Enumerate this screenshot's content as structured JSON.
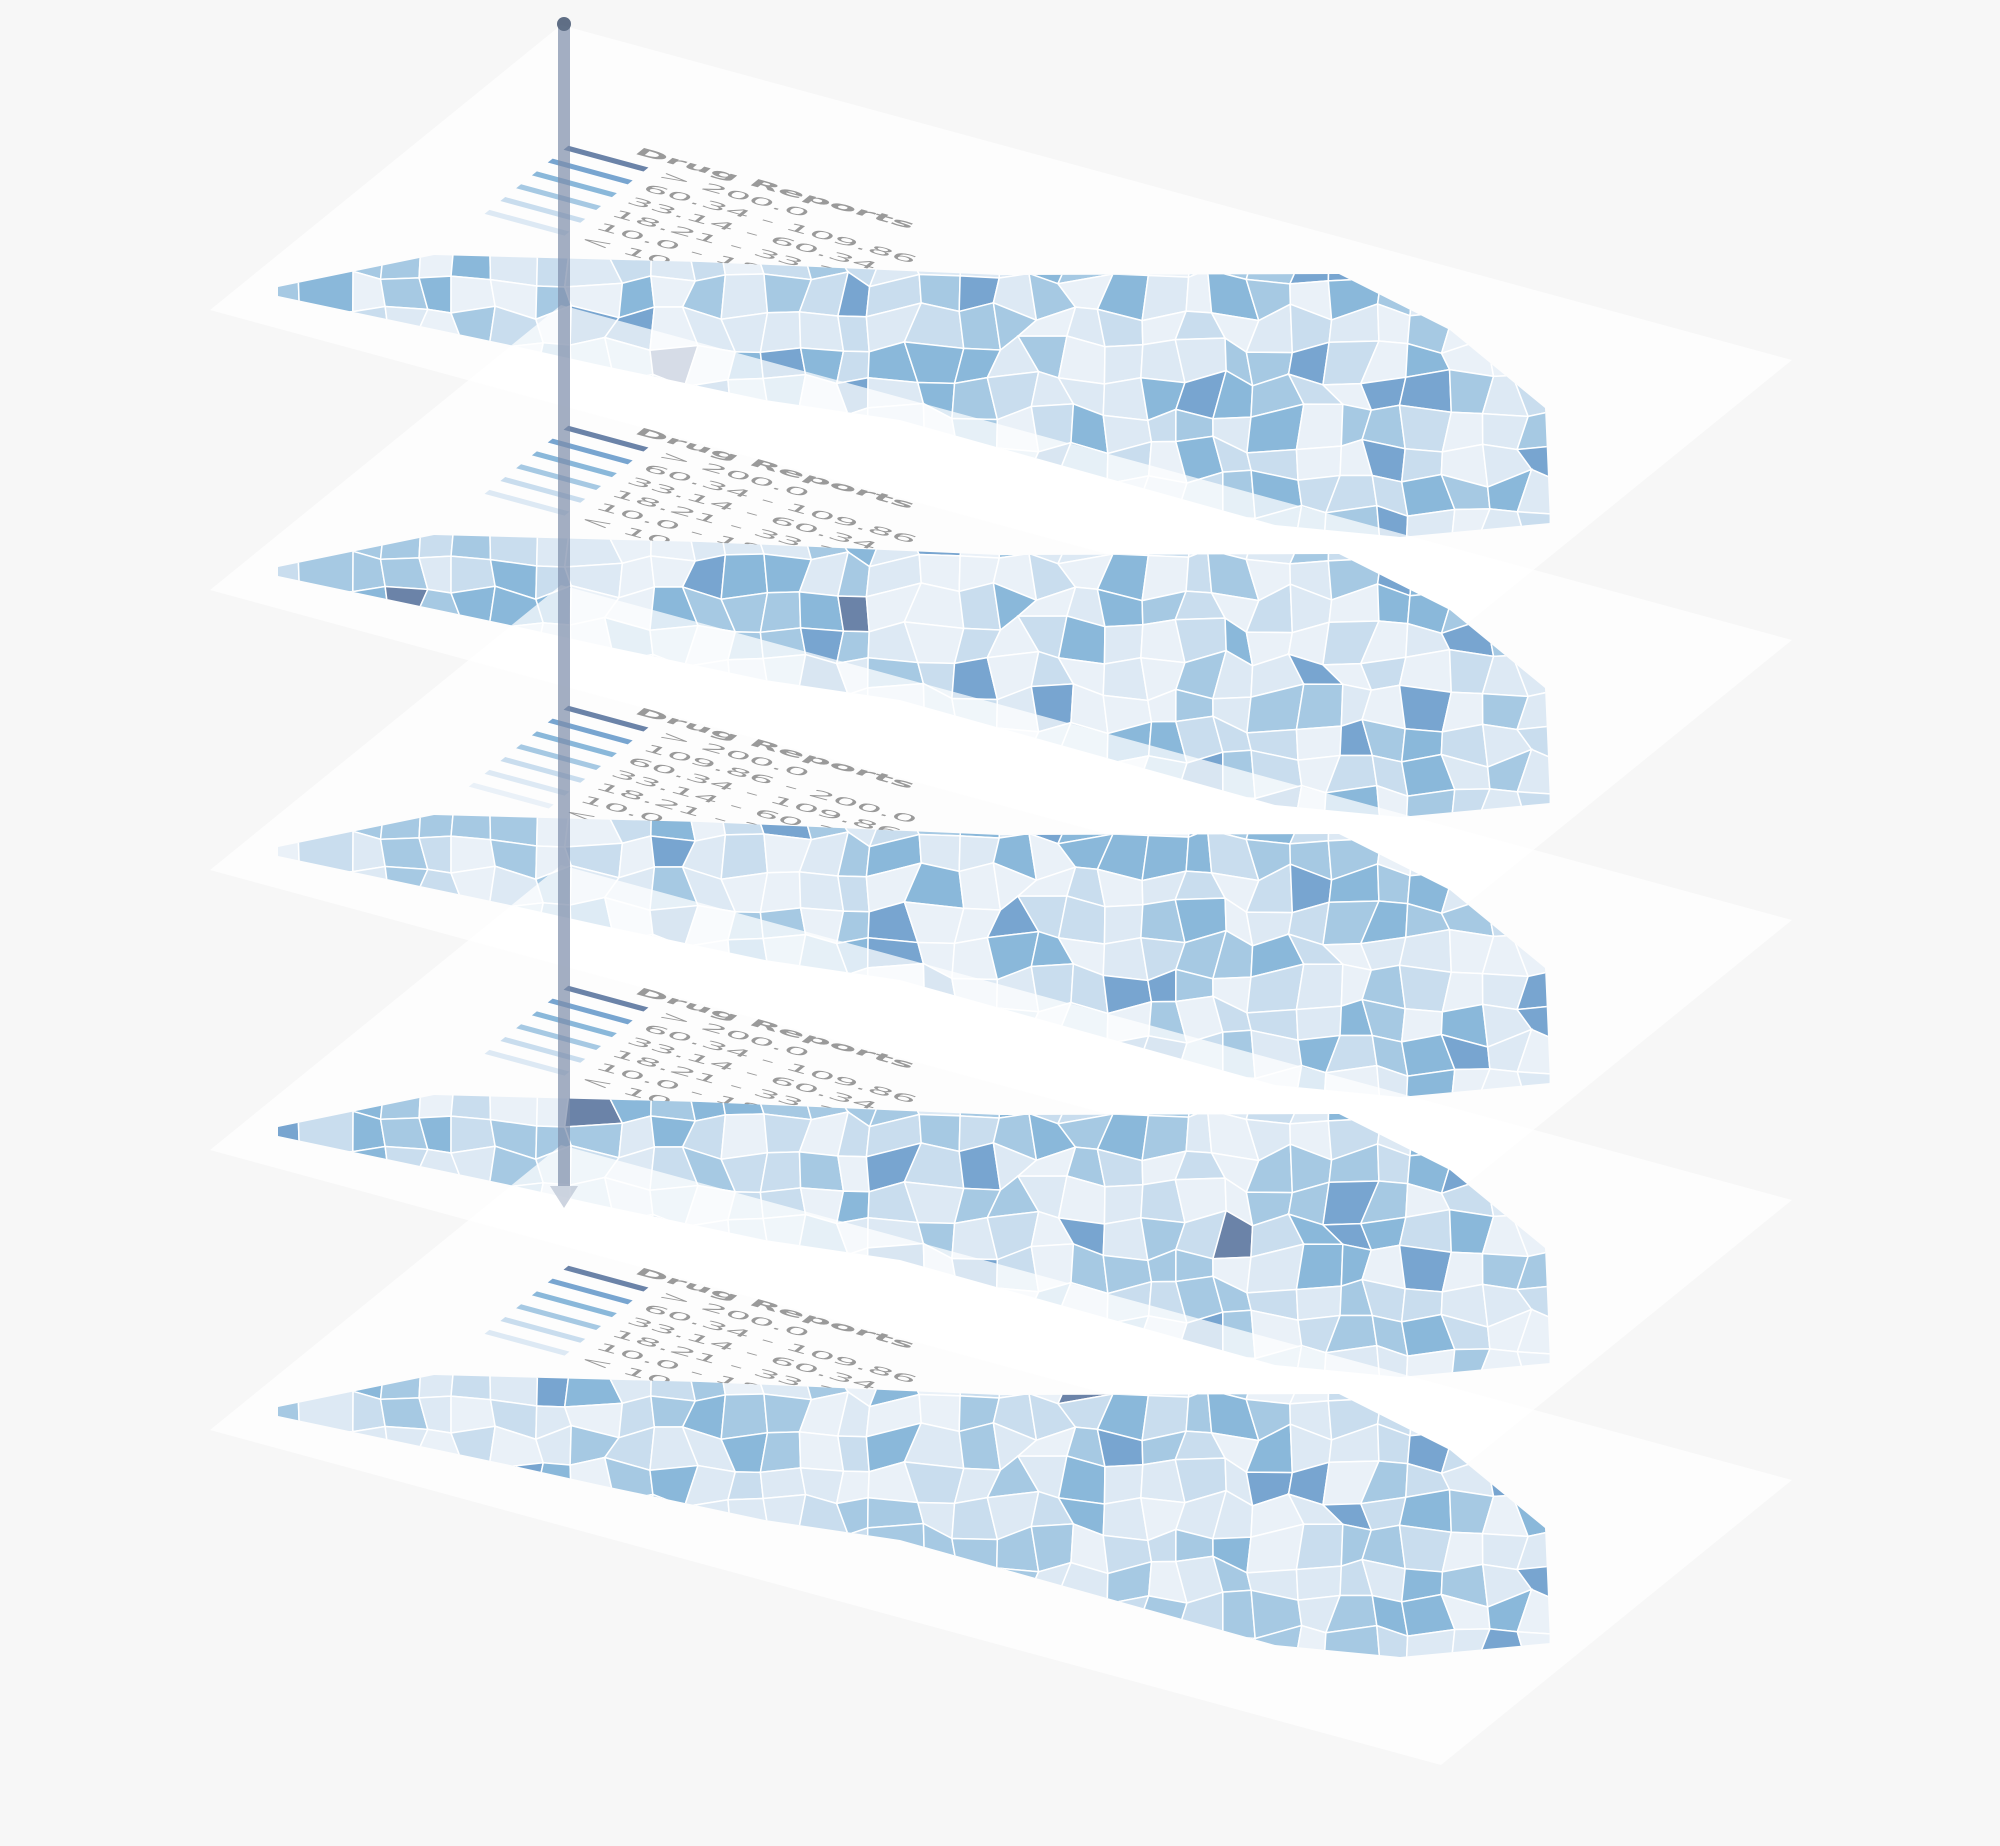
{
  "layers": [
    {
      "legend": {
        "title": "Drug Reports",
        "items": [
          "> 200.0",
          "60.34 - 109.86",
          "33.14 - 60.34",
          "18.21 - 33.14",
          "10.0 - 18.21",
          "< 10.0"
        ]
      }
    },
    {
      "legend": {
        "title": "Drug Reports",
        "items": [
          "> 200.0",
          "60.34 - 109.86",
          "33.14 - 60.34",
          "18.21 - 33.14",
          "10.0 - 18.21",
          "< 10.0"
        ]
      }
    },
    {
      "legend": {
        "title": "Drug Reports",
        "items": [
          "> 200.0",
          "109.86 - 200.0",
          "60.34 - 109.86",
          "33.14 - 60.34",
          "18.21 - 33.14",
          "10.0 - 18.21",
          "< 10.0"
        ]
      }
    },
    {
      "legend": {
        "title": "Drug Reports",
        "items": [
          "> 200.0",
          "60.34 - 109.86",
          "33.14 - 60.34",
          "18.21 - 33.14",
          "10.0 - 18.21",
          "< 10.0"
        ]
      }
    },
    {
      "legend": {
        "title": "Drug Reports",
        "items": [
          "> 200.0",
          "60.34 - 109.86",
          "33.14 - 60.34",
          "18.21 - 33.14",
          "10.0 - 18.21",
          "< 10.0"
        ]
      }
    }
  ]
}
